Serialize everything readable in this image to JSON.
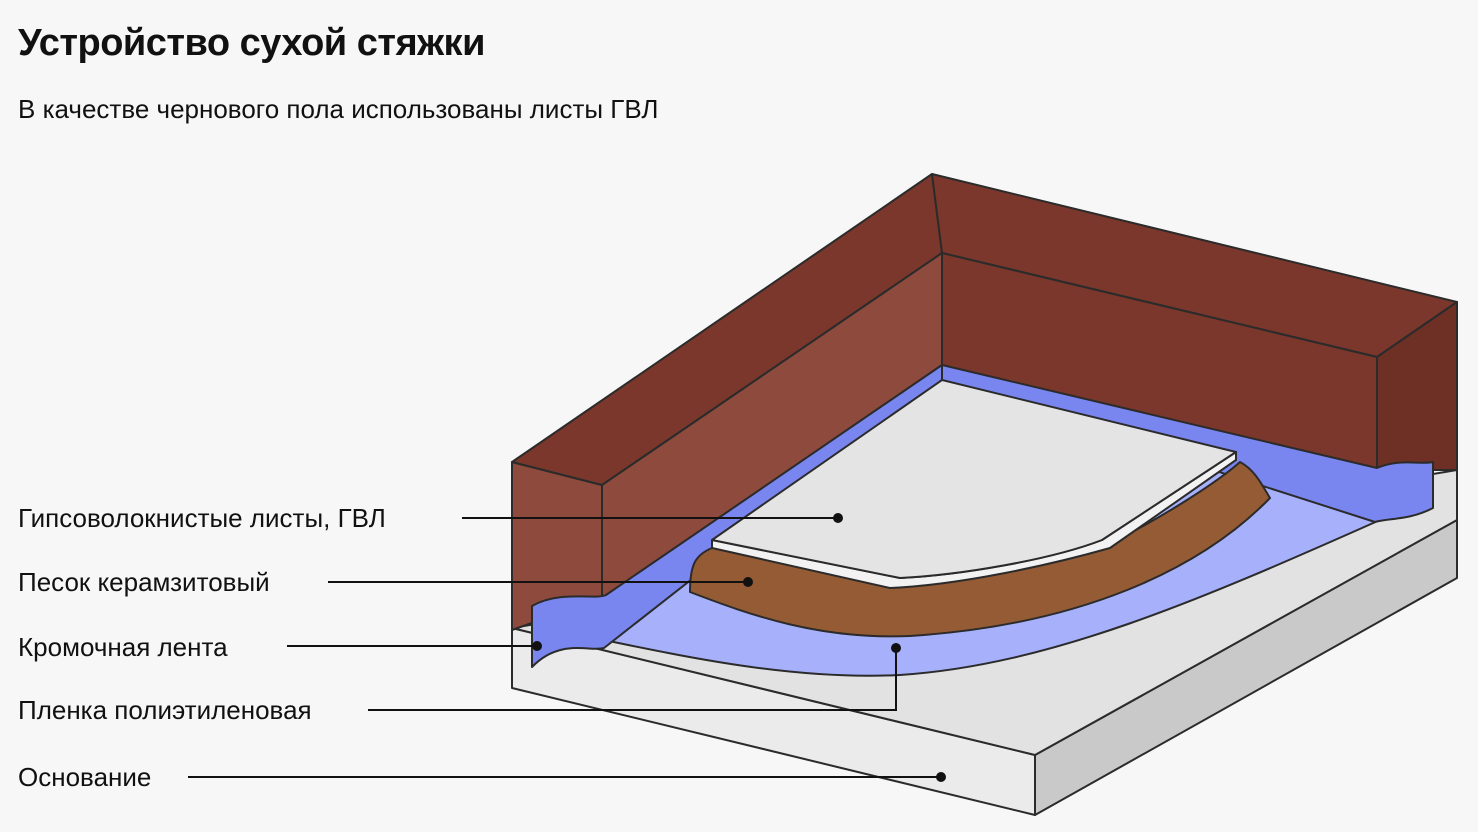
{
  "header": {
    "title": "Устройство сухой стяжки",
    "subtitle": "В качестве чернового пола использованы листы ГВЛ"
  },
  "labels": {
    "gvl": "Гипсоволокнистые листы, ГВЛ",
    "sand": "Песок керамзитовый",
    "tape": "Кромочная лента",
    "film": "Пленка полиэтиленовая",
    "base": "Основание"
  },
  "colors": {
    "background": "#f7f7f7",
    "wall_top": "#7b372b",
    "wall_front": "#8e4a3d",
    "edge_tape": "#7a86f0",
    "film": "#a7b0fb",
    "sand": "#955b34",
    "gvl_top": "#e4e4e4",
    "base_top": "#e2e2e2",
    "base_side": "#c9c9c9",
    "outline": "#2b2b2b"
  }
}
